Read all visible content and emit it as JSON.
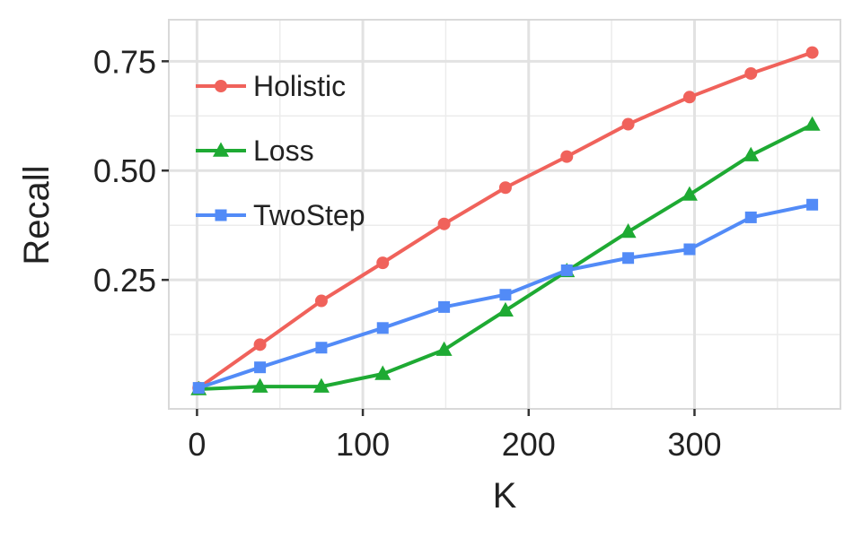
{
  "chart_data": {
    "type": "line",
    "xlabel": "K",
    "ylabel": "Recall",
    "xlim": [
      -17,
      388
    ],
    "ylim": [
      -0.045,
      0.845
    ],
    "x_ticks": [
      0,
      100,
      200,
      300
    ],
    "x_tick_labels": [
      "0",
      "100",
      "200",
      "300"
    ],
    "y_ticks": [
      0.25,
      0.5,
      0.75
    ],
    "y_tick_labels": [
      "0.25",
      "0.50",
      "0.75"
    ],
    "grid": true,
    "legend_position": "top-left",
    "x": [
      1,
      38,
      75,
      112,
      149,
      186,
      223,
      260,
      297,
      334,
      371
    ],
    "series": [
      {
        "name": "Holistic",
        "marker": "circle",
        "color": "#F0625B",
        "values": [
          0.003,
          0.102,
          0.202,
          0.289,
          0.378,
          0.461,
          0.532,
          0.606,
          0.668,
          0.722,
          0.77
        ]
      },
      {
        "name": "Loss",
        "marker": "triangle",
        "color": "#1EAA33",
        "values": [
          0.0,
          0.006,
          0.006,
          0.035,
          0.09,
          0.18,
          0.27,
          0.36,
          0.445,
          0.535,
          0.605
        ]
      },
      {
        "name": "TwoStep",
        "marker": "square",
        "color": "#528BF7",
        "values": [
          0.003,
          0.05,
          0.095,
          0.14,
          0.188,
          0.216,
          0.272,
          0.3,
          0.32,
          0.393,
          0.422
        ]
      }
    ]
  }
}
